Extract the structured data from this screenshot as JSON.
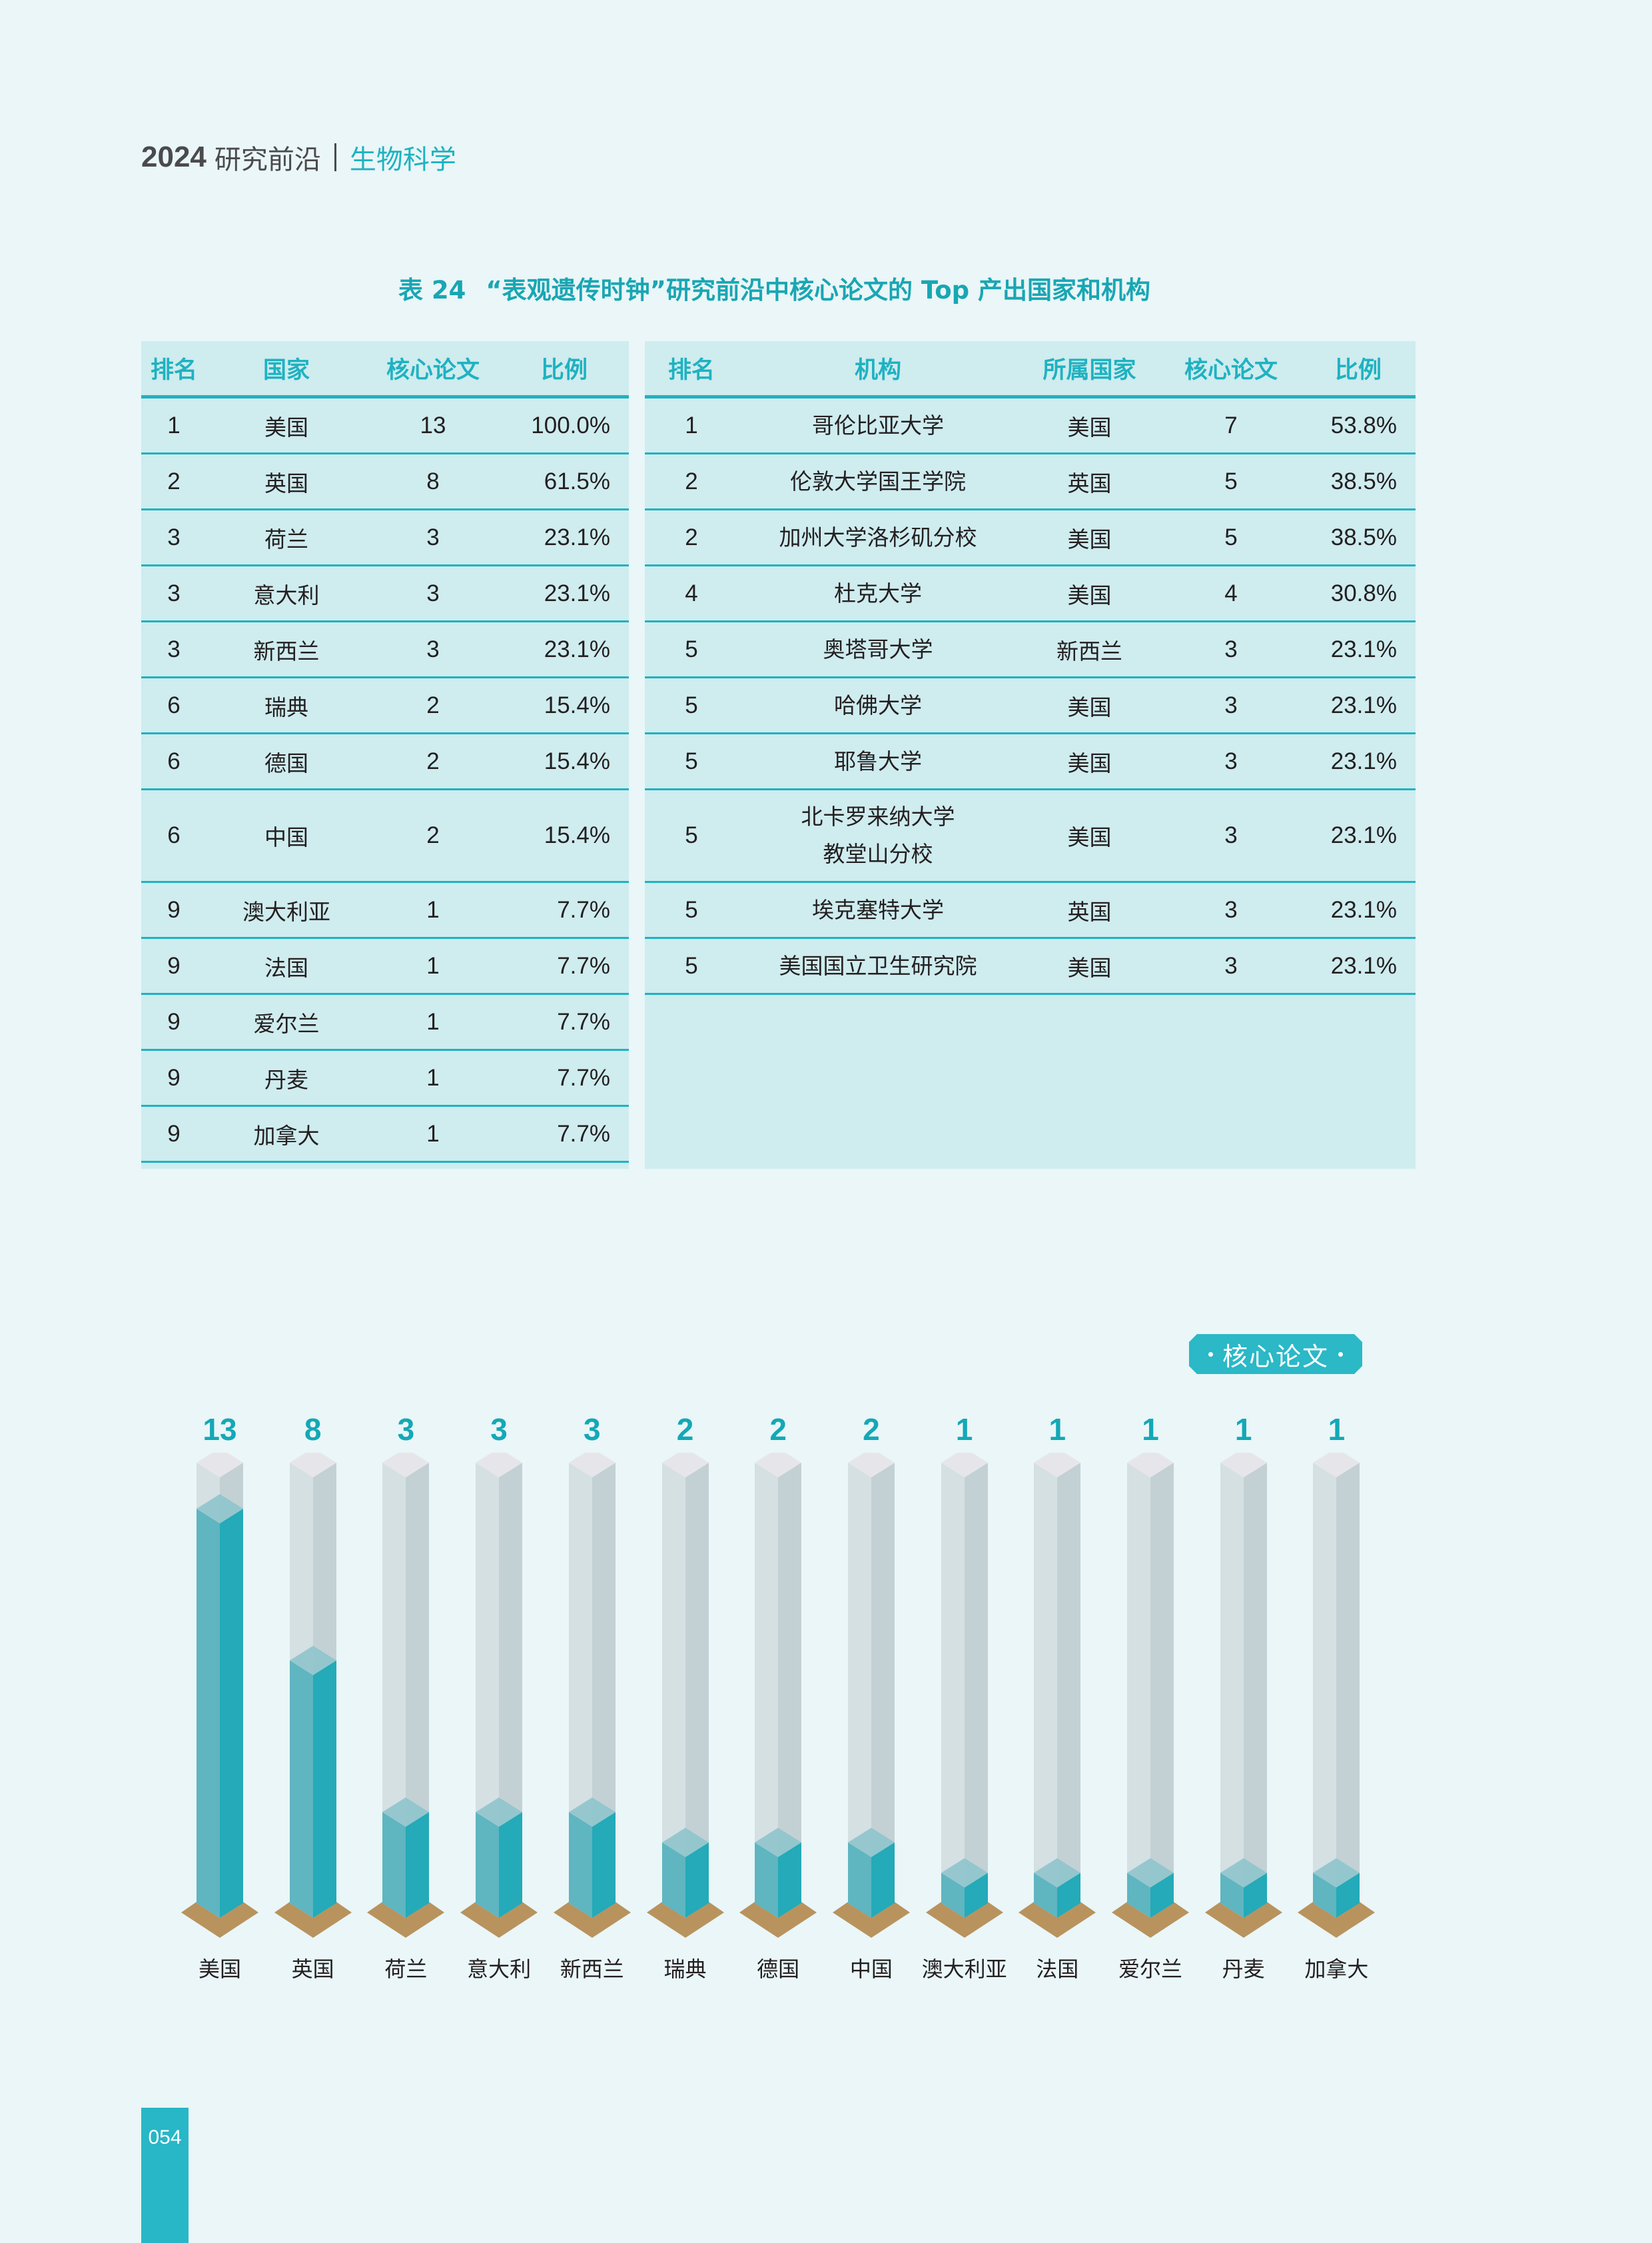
{
  "running_head": {
    "year": "2024",
    "series": "研究前沿",
    "section": "生物科学"
  },
  "table_caption": {
    "number": "表 24",
    "title": "“表观遗传时钟”研究前沿中核心论文的 Top 产出国家和机构"
  },
  "countries_table": {
    "headers": [
      "排名",
      "国家",
      "核心论文",
      "比例"
    ],
    "rows": [
      {
        "rank": "1",
        "country": "美国",
        "papers": "13",
        "share": "100.0%"
      },
      {
        "rank": "2",
        "country": "英国",
        "papers": "8",
        "share": "61.5%"
      },
      {
        "rank": "3",
        "country": "荷兰",
        "papers": "3",
        "share": "23.1%"
      },
      {
        "rank": "3",
        "country": "意大利",
        "papers": "3",
        "share": "23.1%"
      },
      {
        "rank": "3",
        "country": "新西兰",
        "papers": "3",
        "share": "23.1%"
      },
      {
        "rank": "6",
        "country": "瑞典",
        "papers": "2",
        "share": "15.4%"
      },
      {
        "rank": "6",
        "country": "德国",
        "papers": "2",
        "share": "15.4%"
      },
      {
        "rank": "6",
        "country": "中国",
        "papers": "2",
        "share": "15.4%"
      },
      {
        "rank": "9",
        "country": "澳大利亚",
        "papers": "1",
        "share": "7.7%"
      },
      {
        "rank": "9",
        "country": "法国",
        "papers": "1",
        "share": "7.7%"
      },
      {
        "rank": "9",
        "country": "爱尔兰",
        "papers": "1",
        "share": "7.7%"
      },
      {
        "rank": "9",
        "country": "丹麦",
        "papers": "1",
        "share": "7.7%"
      },
      {
        "rank": "9",
        "country": "加拿大",
        "papers": "1",
        "share": "7.7%"
      }
    ]
  },
  "institutions_table": {
    "headers": [
      "排名",
      "机构",
      "所属国家",
      "核心论文",
      "比例"
    ],
    "rows": [
      {
        "rank": "1",
        "institution": "哥伦比亚大学",
        "institution_line2": "",
        "country": "美国",
        "papers": "7",
        "share": "53.8%"
      },
      {
        "rank": "2",
        "institution": "伦敦大学国王学院",
        "institution_line2": "",
        "country": "英国",
        "papers": "5",
        "share": "38.5%"
      },
      {
        "rank": "2",
        "institution": "加州大学洛杉矶分校",
        "institution_line2": "",
        "country": "美国",
        "papers": "5",
        "share": "38.5%"
      },
      {
        "rank": "4",
        "institution": "杜克大学",
        "institution_line2": "",
        "country": "美国",
        "papers": "4",
        "share": "30.8%"
      },
      {
        "rank": "5",
        "institution": "奥塔哥大学",
        "institution_line2": "",
        "country": "新西兰",
        "papers": "3",
        "share": "23.1%"
      },
      {
        "rank": "5",
        "institution": "哈佛大学",
        "institution_line2": "",
        "country": "美国",
        "papers": "3",
        "share": "23.1%"
      },
      {
        "rank": "5",
        "institution": "耶鲁大学",
        "institution_line2": "",
        "country": "美国",
        "papers": "3",
        "share": "23.1%"
      },
      {
        "rank": "5",
        "institution": "北卡罗来纳大学",
        "institution_line2": "教堂山分校",
        "country": "美国",
        "papers": "3",
        "share": "23.1%"
      },
      {
        "rank": "5",
        "institution": "埃克塞特大学",
        "institution_line2": "",
        "country": "英国",
        "papers": "3",
        "share": "23.1%"
      },
      {
        "rank": "5",
        "institution": "美国国立卫生研究院",
        "institution_line2": "",
        "country": "美国",
        "papers": "3",
        "share": "23.1%"
      }
    ]
  },
  "chart_legend": {
    "label": "核心论文"
  },
  "colors": {
    "accent": "#1fb2c1",
    "bar_fill": "#24aab8",
    "bar_track": "#d0dde0",
    "bar_base": "#b8935e",
    "background": "#eaf6f8",
    "table_bg": "#cfecef"
  },
  "chart_data": {
    "type": "bar",
    "title": "",
    "legend": [
      "核心论文"
    ],
    "xlabel": "",
    "ylabel": "",
    "grid": false,
    "legend_position": "top-right",
    "categories": [
      "美国",
      "英国",
      "荷兰",
      "意大利",
      "新西兰",
      "瑞典",
      "德国",
      "中国",
      "澳大利亚",
      "法国",
      "爱尔兰",
      "丹麦",
      "加拿大"
    ],
    "values": [
      13,
      8,
      3,
      3,
      3,
      2,
      2,
      2,
      1,
      1,
      1,
      1,
      1
    ],
    "ylim": [
      0,
      15
    ],
    "style": "isometric 3D columns with gray full-height track and teal fill"
  },
  "page_number": "054"
}
